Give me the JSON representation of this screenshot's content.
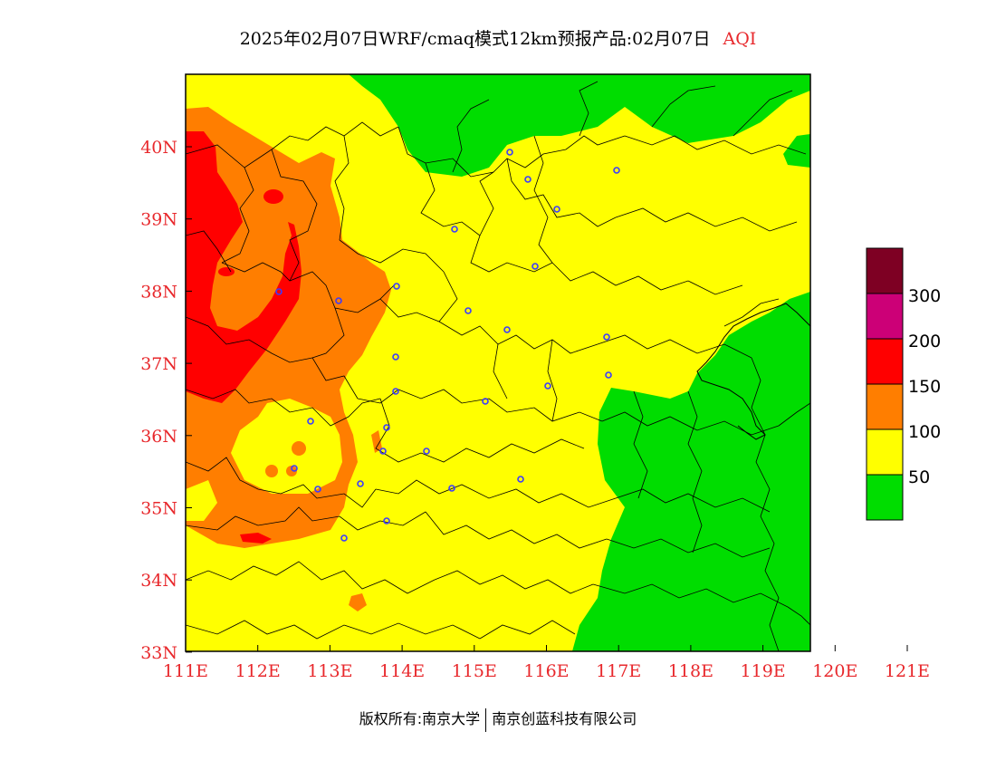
{
  "title": {
    "main": "2025年02月07日WRF/cmaq模式12km预报产品:02月07日",
    "variable": "AQI"
  },
  "map": {
    "x_axis_labels": [
      "111E",
      "112E",
      "113E",
      "114E",
      "115E",
      "116E",
      "117E",
      "118E",
      "119E",
      "120E",
      "121E"
    ],
    "y_axis_labels": [
      "40N",
      "39N",
      "38N",
      "37N",
      "36N",
      "35N",
      "34N",
      "33N"
    ]
  },
  "legend": {
    "colors": {
      "band_0_50": "#00dd00",
      "band_50_100": "#ffff00",
      "band_100_150": "#ff7e00",
      "band_150_200": "#ff0000",
      "band_200_300": "#cc0077",
      "band_300_plus": "#7e0023"
    },
    "labels": [
      "300",
      "200",
      "150",
      "100",
      "50"
    ]
  },
  "footer": {
    "left": "版权所有:南京大学",
    "right": "南京创蓝科技有限公司"
  }
}
